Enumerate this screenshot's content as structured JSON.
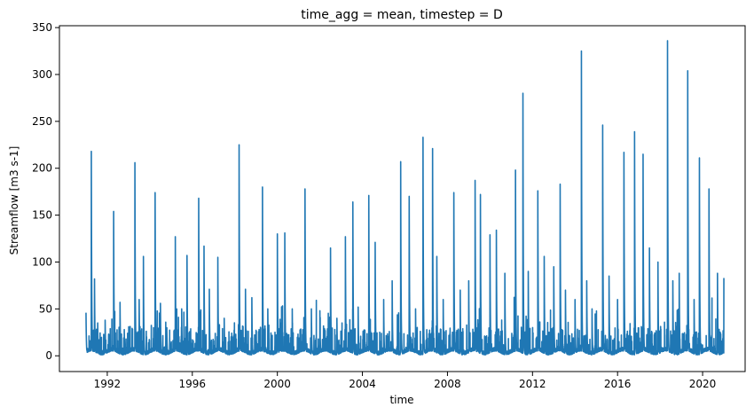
{
  "chart_data": {
    "type": "line",
    "title": "time_agg = mean, timestep = D",
    "xlabel": "time",
    "ylabel": "Streamflow [m3 s-1]",
    "xlim": [
      1989.75,
      2022.0
    ],
    "ylim": [
      -16.8,
      352
    ],
    "xticks": [
      1992,
      1996,
      2000,
      2004,
      2008,
      2012,
      2016,
      2020
    ],
    "yticks": [
      0,
      50,
      100,
      150,
      200,
      250,
      300,
      350
    ],
    "grid": false,
    "line_color": "#1f77b4",
    "series": [
      {
        "x_range": [
          1991.0,
          2021.0
        ],
        "baseline": 3,
        "peaks": [
          [
            1991.0,
            46
          ],
          [
            1991.25,
            218
          ],
          [
            1991.4,
            82
          ],
          [
            1991.55,
            35
          ],
          [
            1991.9,
            38
          ],
          [
            1992.3,
            154
          ],
          [
            1992.6,
            57
          ],
          [
            1992.8,
            28
          ],
          [
            1993.3,
            206
          ],
          [
            1993.5,
            60
          ],
          [
            1993.7,
            106
          ],
          [
            1994.25,
            174
          ],
          [
            1994.5,
            56
          ],
          [
            1994.8,
            30
          ],
          [
            1995.2,
            127
          ],
          [
            1995.5,
            50
          ],
          [
            1995.75,
            107
          ],
          [
            1996.3,
            168
          ],
          [
            1996.55,
            117
          ],
          [
            1996.8,
            71
          ],
          [
            1997.2,
            105
          ],
          [
            1997.5,
            40
          ],
          [
            1998.2,
            225
          ],
          [
            1998.5,
            71
          ],
          [
            1998.8,
            62
          ],
          [
            1999.3,
            180
          ],
          [
            1999.55,
            50
          ],
          [
            2000.0,
            130
          ],
          [
            2000.35,
            131
          ],
          [
            2000.7,
            50
          ],
          [
            2001.3,
            178
          ],
          [
            2001.6,
            50
          ],
          [
            2002.0,
            48
          ],
          [
            2002.5,
            115
          ],
          [
            2002.8,
            40
          ],
          [
            2003.2,
            127
          ],
          [
            2003.55,
            164
          ],
          [
            2003.8,
            52
          ],
          [
            2004.3,
            171
          ],
          [
            2004.6,
            121
          ],
          [
            2005.0,
            60
          ],
          [
            2005.4,
            80
          ],
          [
            2005.8,
            207
          ],
          [
            2006.2,
            170
          ],
          [
            2006.5,
            50
          ],
          [
            2006.85,
            233
          ],
          [
            2007.3,
            221
          ],
          [
            2007.5,
            106
          ],
          [
            2007.8,
            60
          ],
          [
            2008.3,
            174
          ],
          [
            2008.6,
            70
          ],
          [
            2009.0,
            80
          ],
          [
            2009.3,
            187
          ],
          [
            2009.55,
            172
          ],
          [
            2010.0,
            129
          ],
          [
            2010.3,
            134
          ],
          [
            2010.7,
            88
          ],
          [
            2011.2,
            198
          ],
          [
            2011.55,
            280
          ],
          [
            2011.8,
            90
          ],
          [
            2012.25,
            176
          ],
          [
            2012.55,
            106
          ],
          [
            2013.0,
            95
          ],
          [
            2013.3,
            183
          ],
          [
            2013.55,
            70
          ],
          [
            2014.0,
            60
          ],
          [
            2014.3,
            325
          ],
          [
            2014.55,
            80
          ],
          [
            2014.8,
            50
          ],
          [
            2015.3,
            246
          ],
          [
            2015.6,
            85
          ],
          [
            2016.0,
            60
          ],
          [
            2016.3,
            217
          ],
          [
            2016.8,
            239
          ],
          [
            2017.2,
            215
          ],
          [
            2017.5,
            115
          ],
          [
            2017.9,
            100
          ],
          [
            2018.35,
            336
          ],
          [
            2018.6,
            80
          ],
          [
            2018.9,
            88
          ],
          [
            2019.3,
            304
          ],
          [
            2019.6,
            60
          ],
          [
            2019.85,
            211
          ],
          [
            2020.3,
            178
          ],
          [
            2020.7,
            88
          ],
          [
            2021.0,
            83
          ]
        ]
      }
    ]
  }
}
